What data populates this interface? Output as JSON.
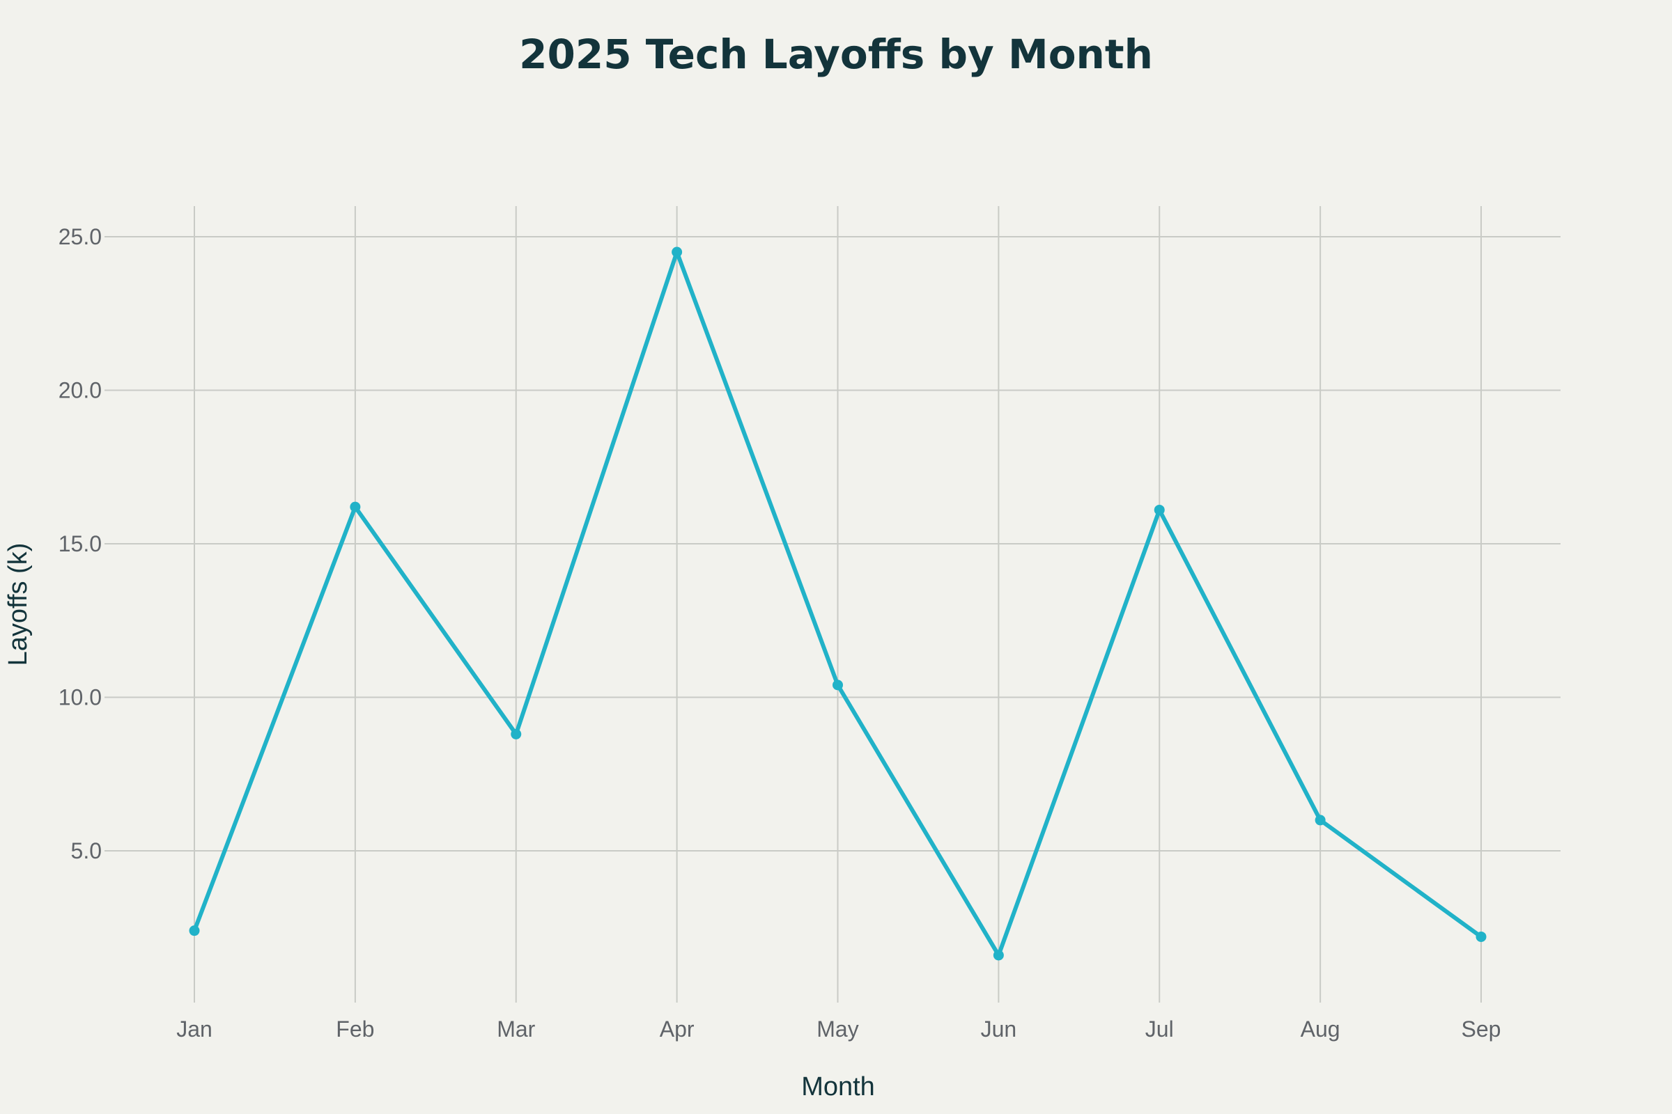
{
  "chart_data": {
    "type": "line",
    "title": "2025 Tech Layoffs by Month",
    "xlabel": "Month",
    "ylabel": "Layoffs (k)",
    "categories": [
      "Jan",
      "Feb",
      "Mar",
      "Apr",
      "May",
      "Jun",
      "Jul",
      "Aug",
      "Sep"
    ],
    "series": [
      {
        "values": [
          2.4,
          16.2,
          8.8,
          24.5,
          10.4,
          1.6,
          16.1,
          6.0,
          2.2
        ],
        "color": "#21b2c8"
      }
    ],
    "yticks": [
      5.0,
      10.0,
      15.0,
      20.0,
      25.0
    ],
    "ytick_labels": [
      "5.0",
      "10.0",
      "15.0",
      "20.0",
      "25.0"
    ],
    "ylim": [
      0,
      26
    ],
    "grid": true,
    "markers": true
  }
}
